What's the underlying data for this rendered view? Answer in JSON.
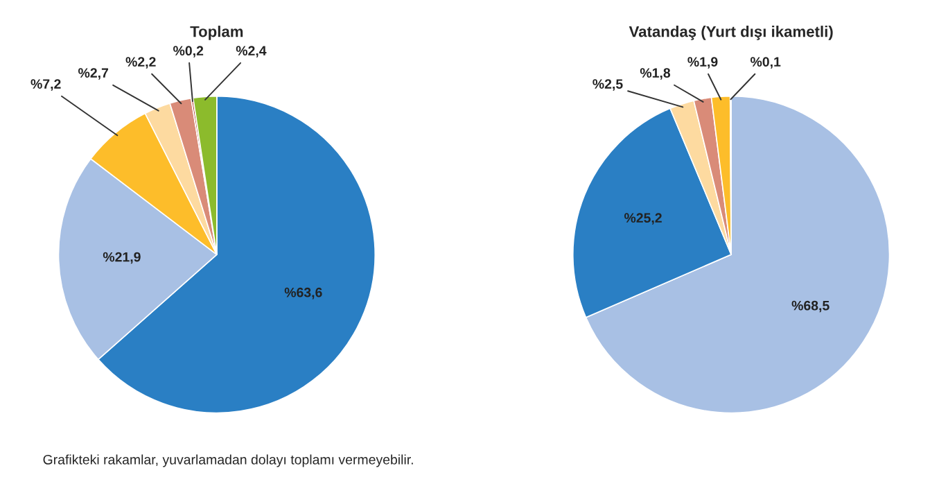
{
  "chart_data": [
    {
      "type": "pie",
      "title": "Toplam",
      "categories": [
        null,
        null,
        null,
        null,
        null,
        null,
        null
      ],
      "values": [
        63.6,
        21.9,
        7.2,
        2.7,
        2.2,
        0.2,
        2.4
      ],
      "value_labels": [
        "%63,6",
        "%21,9",
        "%7,2",
        "%2,7",
        "%2,2",
        "%0,2",
        "%2,4"
      ],
      "colors": [
        "#2a7fc4",
        "#a8c0e4",
        "#fdbd2a",
        "#fddaa0",
        "#d98b78",
        "#b03a2e",
        "#8cbb2c"
      ],
      "annotations": [
        "Grafikteki rakamlar, yuvarlamadan dolayı toplamı vermeyebilir."
      ]
    },
    {
      "type": "pie",
      "title": "Vatandaş (Yurt dışı ikametli)",
      "categories": [
        null,
        null,
        null,
        null,
        null,
        null
      ],
      "values": [
        68.5,
        25.2,
        2.5,
        1.8,
        1.9,
        0.1
      ],
      "value_labels": [
        "%68,5",
        "%25,2",
        "%2,5",
        "%1,8",
        "%1,9",
        "%0,1"
      ],
      "colors": [
        "#a8c0e4",
        "#2a7fc4",
        "#fddaa0",
        "#d98b78",
        "#fdbd2a",
        "#e07030"
      ]
    }
  ]
}
